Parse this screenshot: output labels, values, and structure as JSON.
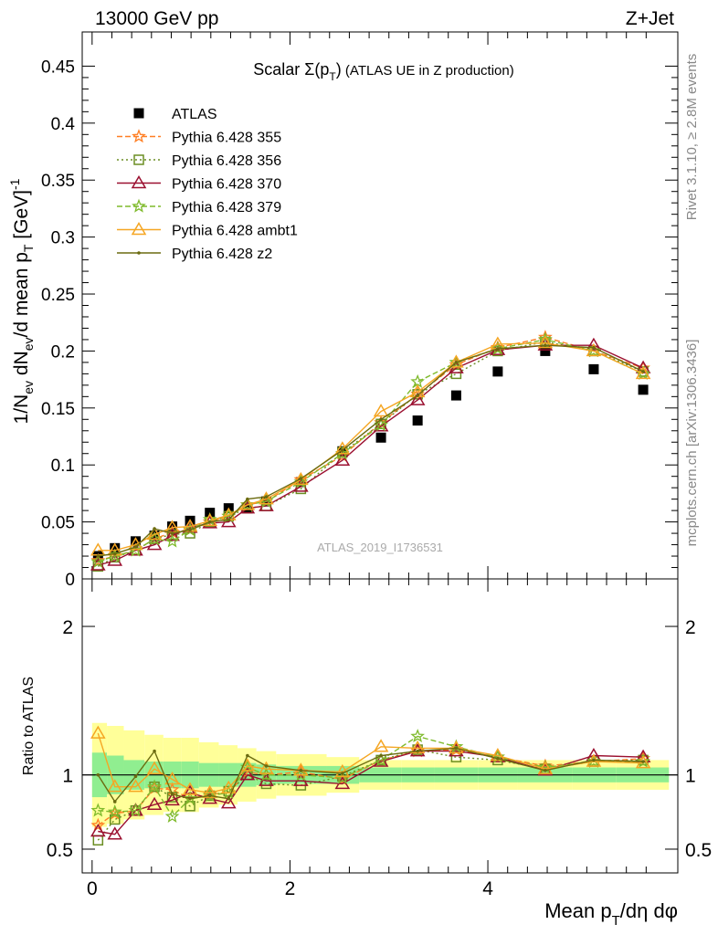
{
  "header": {
    "left": "13000 GeV pp",
    "right": "Z+Jet"
  },
  "side_labels": {
    "rivet": "Rivet 3.1.10, ≥ 2.8M events",
    "mcplots": "mcplots.cern.ch [arXiv:1306.3436]"
  },
  "colors": {
    "ATLAS": "#000000",
    "p355": "#ff7f24",
    "p356": "#6b8e23",
    "p370": "#9b1030",
    "p379": "#7fba2c",
    "ambt1": "#f5a623",
    "z2": "#6b6b10",
    "band_inner": "#90ee90",
    "band_outer": "#ffff99"
  },
  "chart_data": [
    {
      "type": "scatter",
      "title_prefix": "Scalar ",
      "title_sigma": "Σ(p",
      "title_sub": "T",
      "title_close": ")",
      "title_suffix": " (ATLAS UE in Z production)",
      "ylabel": "1/N_ev dN_ev/d mean p_T [GeV]^-1",
      "watermark": "ATLAS_2019_I1736531",
      "xlim": [
        -0.1,
        5.92
      ],
      "ylim": [
        0,
        0.48
      ],
      "yticks": [
        "0",
        "0.05",
        "0.1",
        "0.15",
        "0.2",
        "0.25",
        "0.3",
        "0.35",
        "0.4",
        "0.45"
      ],
      "grid": false,
      "legend_position": "top-left",
      "x": [
        0.06,
        0.23,
        0.44,
        0.63,
        0.81,
        0.99,
        1.19,
        1.38,
        1.57,
        1.76,
        2.11,
        2.53,
        2.92,
        3.29,
        3.68,
        4.1,
        4.58,
        5.07,
        5.57
      ],
      "series": [
        {
          "name": "ATLAS",
          "key": "ATLAS",
          "marker": "square",
          "values": [
            0.02,
            0.027,
            0.033,
            0.038,
            0.046,
            0.051,
            0.058,
            0.062,
            0.062,
            0.068,
            0.085,
            0.112,
            0.124,
            0.139,
            0.161,
            0.182,
            0.2,
            0.184,
            0.166
          ]
        },
        {
          "name": "Pythia 6.428 355",
          "key": "p355",
          "marker": "star",
          "dash": "6,3",
          "values": [
            0.016,
            0.02,
            0.025,
            0.035,
            0.041,
            0.043,
            0.05,
            0.055,
            0.065,
            0.068,
            0.087,
            0.108,
            0.137,
            0.162,
            0.188,
            0.203,
            0.212,
            0.2,
            0.185
          ]
        },
        {
          "name": "Pythia 6.428 356",
          "key": "p356",
          "marker": "square-open",
          "dash": "2,3",
          "values": [
            0.011,
            0.019,
            0.025,
            0.035,
            0.039,
            0.04,
            0.05,
            0.055,
            0.062,
            0.064,
            0.079,
            0.111,
            0.136,
            0.162,
            0.18,
            0.2,
            0.208,
            0.2,
            0.182
          ]
        },
        {
          "name": "Pythia 6.428 370",
          "key": "p370",
          "marker": "triangle-open",
          "dash": "",
          "values": [
            0.012,
            0.016,
            0.025,
            0.03,
            0.038,
            0.045,
            0.049,
            0.05,
            0.062,
            0.064,
            0.081,
            0.104,
            0.134,
            0.157,
            0.185,
            0.201,
            0.205,
            0.205,
            0.185
          ]
        },
        {
          "name": "Pythia 6.428 379",
          "key": "p379",
          "marker": "star",
          "dash": "6,3",
          "values": [
            0.015,
            0.02,
            0.025,
            0.035,
            0.033,
            0.043,
            0.052,
            0.055,
            0.065,
            0.068,
            0.085,
            0.11,
            0.135,
            0.173,
            0.19,
            0.202,
            0.21,
            0.2,
            0.18
          ]
        },
        {
          "name": "Pythia 6.428 ambt1",
          "key": "ambt1",
          "marker": "triangle-open",
          "dash": "",
          "values": [
            0.025,
            0.025,
            0.03,
            0.039,
            0.045,
            0.046,
            0.051,
            0.056,
            0.065,
            0.07,
            0.087,
            0.114,
            0.147,
            0.164,
            0.19,
            0.206,
            0.207,
            0.2,
            0.18
          ]
        },
        {
          "name": "Pythia 6.428 z2",
          "key": "z2",
          "marker": "dot",
          "dash": "",
          "values": [
            0.02,
            0.022,
            0.028,
            0.044,
            0.04,
            0.043,
            0.05,
            0.052,
            0.07,
            0.072,
            0.088,
            0.113,
            0.14,
            0.161,
            0.19,
            0.202,
            0.205,
            0.203,
            0.182
          ]
        }
      ]
    },
    {
      "type": "scatter",
      "ylabel": "Ratio to ATLAS",
      "xlabel": "Mean p_T/dη dφ",
      "xlim": [
        -0.1,
        5.92
      ],
      "ylim": [
        0.34,
        2.32
      ],
      "xticks": [
        "0",
        "2",
        "4"
      ],
      "yticks": [
        "0.5",
        "1",
        "2"
      ],
      "reference_line": 1,
      "band_edges": [
        0,
        0.15,
        0.32,
        0.53,
        0.72,
        0.9,
        1.08,
        1.28,
        1.47,
        1.66,
        1.86,
        2.37,
        2.7,
        3.13,
        3.46,
        3.9,
        4.3,
        4.85,
        5.3,
        5.83
      ],
      "band_inner": [
        0.15,
        0.13,
        0.1,
        0.09,
        0.09,
        0.09,
        0.08,
        0.08,
        0.08,
        0.07,
        0.06,
        0.06,
        0.05,
        0.05,
        0.05,
        0.05,
        0.05,
        0.05,
        0.05
      ],
      "band_outer": [
        0.35,
        0.33,
        0.3,
        0.27,
        0.25,
        0.25,
        0.22,
        0.2,
        0.18,
        0.16,
        0.14,
        0.12,
        0.1,
        0.1,
        0.1,
        0.1,
        0.1,
        0.1,
        0.1
      ],
      "series": [
        {
          "name": "Pythia 6.428 355",
          "key": "p355",
          "marker": "star",
          "dash": "6,3",
          "values": [
            0.66,
            0.74,
            0.76,
            0.91,
            0.9,
            0.84,
            0.87,
            0.88,
            1.02,
            1.0,
            1.02,
            0.97,
            1.1,
            1.16,
            1.17,
            1.12,
            1.06,
            1.09,
            1.11
          ]
        },
        {
          "name": "Pythia 6.428 356",
          "key": "p356",
          "marker": "square-open",
          "dash": "2,3",
          "values": [
            0.56,
            0.7,
            0.76,
            0.92,
            0.85,
            0.79,
            0.86,
            0.89,
            1.0,
            0.94,
            0.93,
            0.99,
            1.1,
            1.17,
            1.12,
            1.1,
            1.04,
            1.09,
            1.1
          ]
        },
        {
          "name": "Pythia 6.428 370",
          "key": "p370",
          "marker": "triangle-open",
          "dash": "",
          "values": [
            0.62,
            0.6,
            0.76,
            0.8,
            0.83,
            0.88,
            0.84,
            0.81,
            1.0,
            0.96,
            0.96,
            0.94,
            1.09,
            1.16,
            1.16,
            1.12,
            1.03,
            1.13,
            1.12
          ]
        },
        {
          "name": "Pythia 6.428 379",
          "key": "p379",
          "marker": "star",
          "dash": "6,3",
          "values": [
            0.76,
            0.75,
            0.76,
            0.92,
            0.72,
            0.84,
            0.86,
            0.88,
            1.05,
            1.0,
            1.0,
            0.98,
            1.1,
            1.26,
            1.19,
            1.12,
            1.05,
            1.09,
            1.09
          ]
        },
        {
          "name": "Pythia 6.428 ambt1",
          "key": "ambt1",
          "marker": "triangle-open",
          "dash": "",
          "values": [
            1.28,
            0.92,
            0.92,
            1.04,
            0.97,
            0.9,
            0.88,
            0.91,
            1.06,
            1.04,
            1.03,
            1.02,
            1.19,
            1.18,
            1.18,
            1.13,
            1.04,
            1.09,
            1.08
          ]
        },
        {
          "name": "Pythia 6.428 z2",
          "key": "z2",
          "marker": "dot",
          "dash": "",
          "values": [
            1.0,
            0.82,
            0.99,
            1.16,
            0.87,
            0.84,
            0.86,
            0.84,
            1.13,
            1.06,
            1.03,
            1.01,
            1.13,
            1.16,
            1.18,
            1.11,
            1.03,
            1.1,
            1.09
          ]
        }
      ]
    }
  ]
}
